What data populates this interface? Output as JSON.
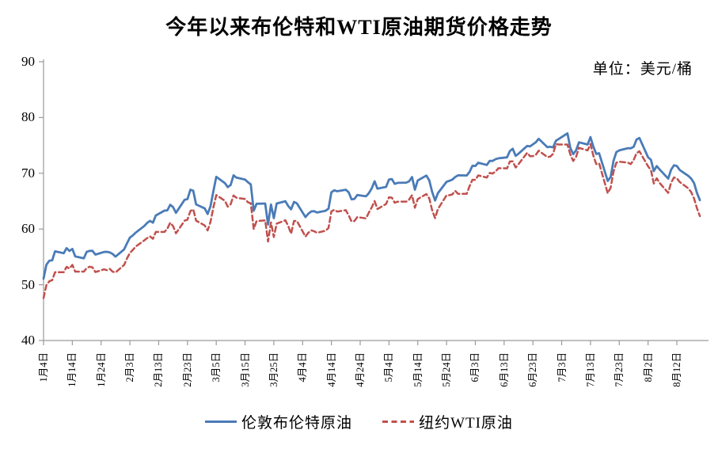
{
  "title": "今年以来布伦特和WTI原油期货价格走势",
  "unit_label": "单位：美元/桶",
  "legend": [
    {
      "label": "伦敦布伦特原油",
      "color": "#4a7bb7",
      "style": "solid"
    },
    {
      "label": "纽约WTI原油",
      "color": "#c0504d",
      "style": "dashed"
    }
  ],
  "chart_data": {
    "type": "line",
    "title": "今年以来布伦特和WTI原油期货价格走势",
    "ylabel": "美元/桶",
    "ylim": [
      40,
      90
    ],
    "y_ticks": [
      40,
      50,
      60,
      70,
      80,
      90
    ],
    "grid": false,
    "legend_position": "bottom",
    "x_tick_labels": [
      "1月4日",
      "1月14日",
      "1月24日",
      "2月3日",
      "2月13日",
      "2月23日",
      "3月5日",
      "3月15日",
      "3月25日",
      "4月4日",
      "4月14日",
      "4月24日",
      "5月4日",
      "5月14日",
      "5月24日",
      "6月3日",
      "6月13日",
      "6月23日",
      "7月3日",
      "7月13日",
      "7月23日",
      "8月2日",
      "8月12日"
    ],
    "dates": [
      "1-4",
      "1-5",
      "1-6",
      "1-7",
      "1-8",
      "1-11",
      "1-12",
      "1-13",
      "1-14",
      "1-15",
      "1-18",
      "1-19",
      "1-20",
      "1-21",
      "1-22",
      "1-25",
      "1-26",
      "1-27",
      "1-28",
      "1-29",
      "2-1",
      "2-2",
      "2-3",
      "2-4",
      "2-5",
      "2-8",
      "2-9",
      "2-10",
      "2-11",
      "2-12",
      "2-15",
      "2-16",
      "2-17",
      "2-18",
      "2-19",
      "2-22",
      "2-23",
      "2-24",
      "2-25",
      "2-26",
      "3-1",
      "3-2",
      "3-3",
      "3-4",
      "3-5",
      "3-8",
      "3-9",
      "3-10",
      "3-11",
      "3-12",
      "3-15",
      "3-16",
      "3-17",
      "3-18",
      "3-19",
      "3-22",
      "3-23",
      "3-24",
      "3-25",
      "3-26",
      "3-29",
      "3-30",
      "3-31",
      "4-1",
      "4-2",
      "4-5",
      "4-6",
      "4-7",
      "4-8",
      "4-9",
      "4-12",
      "4-13",
      "4-14",
      "4-15",
      "4-16",
      "4-19",
      "4-20",
      "4-21",
      "4-22",
      "4-23",
      "4-26",
      "4-27",
      "4-28",
      "4-29",
      "4-30",
      "5-3",
      "5-4",
      "5-5",
      "5-6",
      "5-7",
      "5-10",
      "5-11",
      "5-12",
      "5-13",
      "5-14",
      "5-17",
      "5-18",
      "5-19",
      "5-20",
      "5-21",
      "5-24",
      "5-25",
      "5-26",
      "5-27",
      "5-28",
      "5-31",
      "6-1",
      "6-2",
      "6-3",
      "6-4",
      "6-7",
      "6-8",
      "6-9",
      "6-10",
      "6-11",
      "6-14",
      "6-15",
      "6-16",
      "6-17",
      "6-18",
      "6-21",
      "6-22",
      "6-23",
      "6-24",
      "6-25",
      "6-28",
      "6-29",
      "6-30",
      "7-1",
      "7-2",
      "7-5",
      "7-6",
      "7-7",
      "7-8",
      "7-9",
      "7-12",
      "7-13",
      "7-14",
      "7-15",
      "7-16",
      "7-19",
      "7-20",
      "7-21",
      "7-22",
      "7-23",
      "7-26",
      "7-27",
      "7-28",
      "7-29",
      "7-30",
      "8-2",
      "8-3",
      "8-4",
      "8-5",
      "8-6",
      "8-9",
      "8-10",
      "8-11",
      "8-12",
      "8-13",
      "8-16",
      "8-17",
      "8-18",
      "8-19",
      "8-20"
    ],
    "series": [
      {
        "name": "伦敦布伦特原油",
        "color": "#4a7bb7",
        "style": "solid",
        "values": [
          51.09,
          53.6,
          54.3,
          54.38,
          55.99,
          55.66,
          56.58,
          56.06,
          56.42,
          55.1,
          54.75,
          55.9,
          56.08,
          56.1,
          55.41,
          55.88,
          55.91,
          55.81,
          55.53,
          55.04,
          56.35,
          57.46,
          58.46,
          58.84,
          59.34,
          60.56,
          61.09,
          61.47,
          61.14,
          62.43,
          63.3,
          63.35,
          64.34,
          63.93,
          62.91,
          65.24,
          65.37,
          67.04,
          66.88,
          64.42,
          63.69,
          62.7,
          64.07,
          66.74,
          69.36,
          68.24,
          67.52,
          67.9,
          69.63,
          69.22,
          68.88,
          68.39,
          68.0,
          63.28,
          64.53,
          64.57,
          60.79,
          64.41,
          61.95,
          64.57,
          64.98,
          64.14,
          63.54,
          64.86,
          64.6,
          62.15,
          62.74,
          63.16,
          63.2,
          62.95,
          63.28,
          63.67,
          66.58,
          66.94,
          66.77,
          67.05,
          66.57,
          65.32,
          65.4,
          66.11,
          65.86,
          66.42,
          67.27,
          68.56,
          67.25,
          67.56,
          68.88,
          68.96,
          68.09,
          68.28,
          68.32,
          68.55,
          69.32,
          67.05,
          68.71,
          69.59,
          68.71,
          66.66,
          65.11,
          66.44,
          68.46,
          68.65,
          68.87,
          69.32,
          69.63,
          69.6,
          70.25,
          71.35,
          71.31,
          71.89,
          71.49,
          72.22,
          72.22,
          72.52,
          72.69,
          72.86,
          73.99,
          74.39,
          73.12,
          73.51,
          74.9,
          74.81,
          75.19,
          75.56,
          76.18,
          74.68,
          74.76,
          74.63,
          75.84,
          76.17,
          77.16,
          74.53,
          73.43,
          74.12,
          75.55,
          75.16,
          76.49,
          74.76,
          73.47,
          73.59,
          68.62,
          69.35,
          72.23,
          73.79,
          74.1,
          74.5,
          74.48,
          74.74,
          76.05,
          76.33,
          72.89,
          72.41,
          70.38,
          71.29,
          70.7,
          69.04,
          70.63,
          71.44,
          71.31,
          70.59,
          69.51,
          69.03,
          68.23,
          66.45,
          65.18
        ]
      },
      {
        "name": "纽约WTI原油",
        "color": "#c0504d",
        "style": "dashed",
        "values": [
          47.62,
          49.93,
          50.63,
          50.83,
          52.24,
          52.25,
          53.21,
          52.91,
          53.57,
          52.36,
          52.36,
          52.98,
          53.24,
          53.13,
          52.27,
          52.77,
          52.61,
          52.85,
          52.34,
          52.2,
          53.55,
          54.76,
          55.69,
          56.23,
          56.85,
          57.97,
          58.36,
          58.68,
          58.24,
          59.47,
          59.47,
          60.05,
          61.14,
          60.52,
          59.24,
          61.49,
          61.67,
          63.22,
          63.53,
          61.5,
          60.64,
          59.75,
          61.28,
          63.83,
          66.09,
          65.05,
          64.01,
          64.44,
          66.02,
          65.61,
          65.39,
          64.8,
          64.6,
          60.0,
          61.42,
          61.55,
          57.76,
          61.18,
          58.56,
          60.97,
          61.56,
          60.55,
          59.16,
          61.45,
          61.45,
          58.65,
          59.33,
          59.77,
          59.6,
          59.32,
          59.7,
          60.18,
          63.15,
          63.46,
          63.13,
          63.38,
          62.44,
          61.35,
          61.43,
          62.14,
          61.91,
          62.94,
          63.86,
          65.01,
          63.58,
          64.49,
          65.69,
          65.63,
          64.71,
          64.9,
          64.92,
          65.28,
          66.08,
          63.82,
          65.37,
          66.27,
          65.49,
          63.36,
          61.94,
          63.58,
          66.05,
          66.07,
          66.21,
          66.85,
          66.32,
          66.32,
          67.72,
          68.83,
          68.81,
          69.62,
          69.23,
          70.05,
          69.96,
          70.29,
          70.91,
          70.88,
          72.12,
          72.15,
          71.04,
          71.64,
          73.66,
          73.06,
          73.08,
          73.3,
          74.05,
          72.91,
          72.98,
          73.47,
          75.23,
          75.16,
          75.16,
          73.37,
          72.2,
          72.94,
          74.56,
          74.1,
          75.25,
          73.13,
          71.65,
          71.81,
          66.42,
          67.42,
          70.3,
          71.91,
          72.07,
          71.91,
          71.65,
          72.39,
          73.62,
          73.95,
          71.26,
          70.56,
          68.15,
          69.09,
          68.28,
          66.48,
          68.29,
          69.25,
          69.09,
          68.44,
          67.29,
          66.59,
          65.46,
          63.69,
          62.32
        ]
      }
    ]
  }
}
